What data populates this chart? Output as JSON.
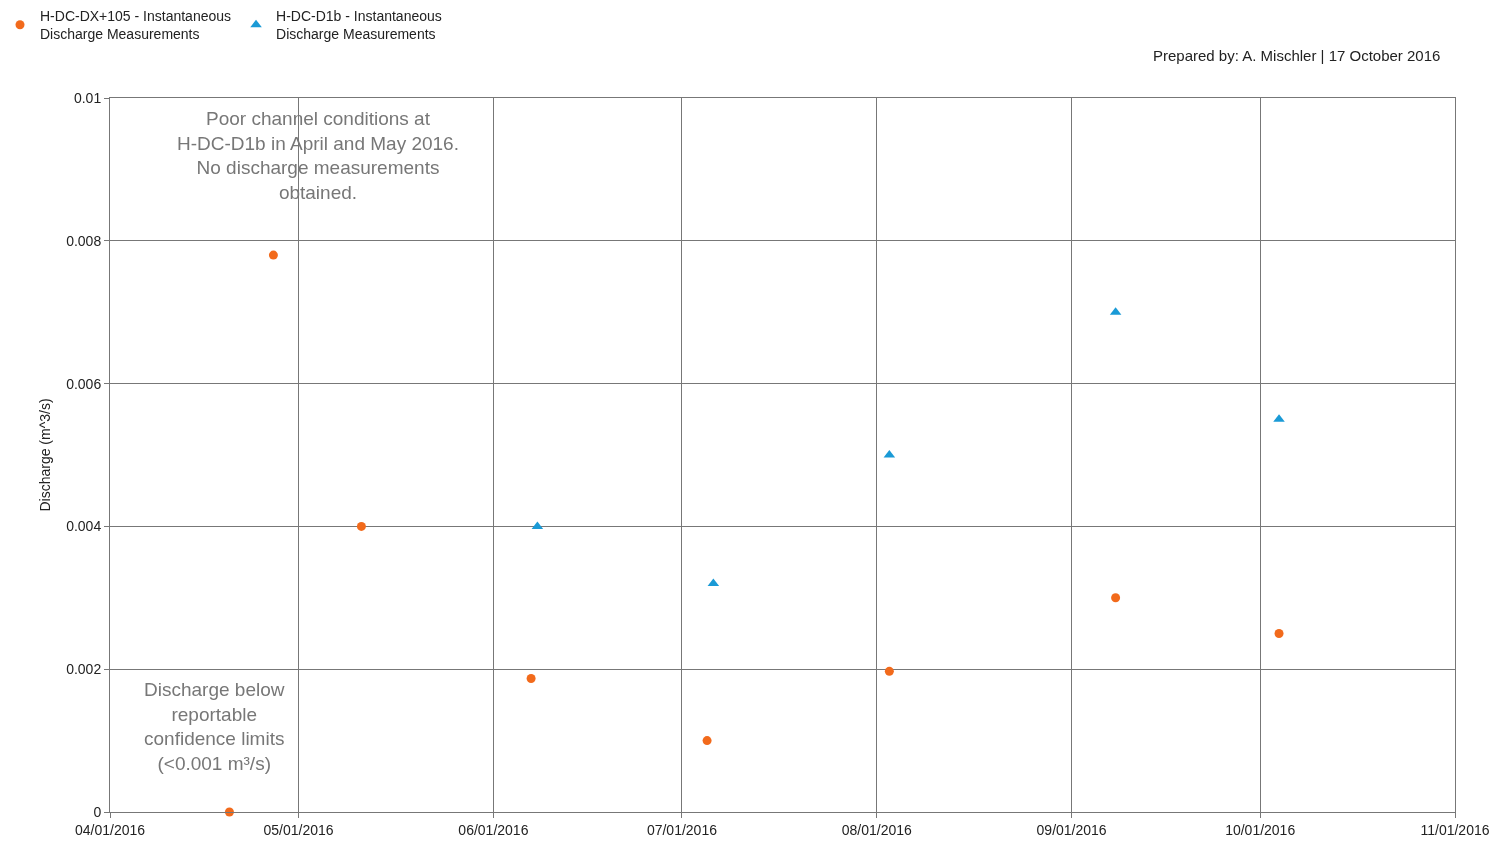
{
  "chart_data": {
    "type": "scatter",
    "ylabel": "Discharge (m^3/s)",
    "x": [
      "2016-04-20",
      "2016-04-27",
      "2016-05-11",
      "2016-06-07",
      "2016-07-05",
      "2016-08-03",
      "2016-09-08",
      "2016-10-04"
    ],
    "series": [
      {
        "name": "H-DC-DX+105 - Instantaneous Discharge Measurements",
        "color": "#f26a1b",
        "marker": "circle",
        "values": [
          0,
          0.0078,
          0.004,
          0.00187,
          0.001,
          0.00197,
          0.003,
          0.0025
        ]
      },
      {
        "name": "H-DC-D1b - Instantaneous Discharge Measurements",
        "color": "#1a9ad6",
        "marker": "triangle",
        "x": [
          "2016-06-08",
          "2016-07-06",
          "2016-08-03",
          "2016-09-08",
          "2016-10-04"
        ],
        "values": [
          0.004,
          0.0032,
          0.005,
          0.007,
          0.0055
        ]
      }
    ],
    "xlim": [
      "2016-04-01",
      "2016-11-01"
    ],
    "xticks": [
      {
        "value": "2016-04-01",
        "label": "04/01/2016"
      },
      {
        "value": "2016-05-01",
        "label": "05/01/2016"
      },
      {
        "value": "2016-06-01",
        "label": "06/01/2016"
      },
      {
        "value": "2016-07-01",
        "label": "07/01/2016"
      },
      {
        "value": "2016-08-01",
        "label": "08/01/2016"
      },
      {
        "value": "2016-09-01",
        "label": "09/01/2016"
      },
      {
        "value": "2016-10-01",
        "label": "10/01/2016"
      },
      {
        "value": "2016-11-01",
        "label": "11/01/2016"
      }
    ],
    "ylim": [
      0,
      0.01
    ],
    "yticks": [
      0,
      0.002,
      0.004,
      0.006,
      0.008,
      0.01
    ],
    "grid": true,
    "legend": "top left",
    "annotations": [
      "Prepared by: A. Mischler | 17 October 2016",
      "Poor channel conditions at H-DC-D1b in April and May 2016. No discharge measurements obtained.",
      "Discharge below reportable confidence limits (<0.001 m³/s)"
    ]
  }
}
